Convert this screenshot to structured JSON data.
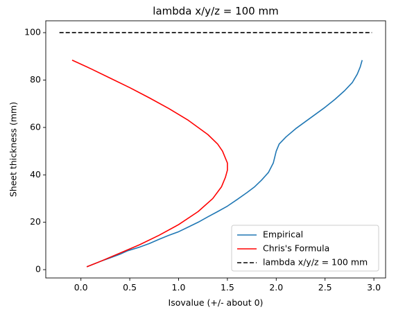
{
  "chart_data": {
    "type": "line",
    "title": "lambda x/y/z = 100 mm",
    "xlabel": "Isovalue (+/- about 0)",
    "ylabel": "Sheet thickness (mm)",
    "xlim": [
      -0.36,
      3.12
    ],
    "ylim": [
      -3.5,
      105
    ],
    "xticks": [
      0.0,
      0.5,
      1.0,
      1.5,
      2.0,
      2.5,
      3.0
    ],
    "xtick_labels": [
      "0.0",
      "0.5",
      "1.0",
      "1.5",
      "2.0",
      "2.5",
      "3.0"
    ],
    "yticks": [
      0,
      20,
      40,
      60,
      80,
      100
    ],
    "ytick_labels": [
      "0",
      "20",
      "40",
      "60",
      "80",
      "100"
    ],
    "grid": false,
    "legend_position": "lower-right",
    "series": [
      {
        "name": "Empirical",
        "color": "#1f77b4",
        "style": "solid",
        "points": [
          [
            0.06,
            1.2
          ],
          [
            0.2,
            3.5
          ],
          [
            0.3,
            5.0
          ],
          [
            0.4,
            6.5
          ],
          [
            0.48,
            8.0
          ],
          [
            0.6,
            9.5
          ],
          [
            0.7,
            11.0
          ],
          [
            0.8,
            12.8
          ],
          [
            0.9,
            14.5
          ],
          [
            1.0,
            16.0
          ],
          [
            1.1,
            18.0
          ],
          [
            1.2,
            20.0
          ],
          [
            1.3,
            22.3
          ],
          [
            1.4,
            24.5
          ],
          [
            1.5,
            26.8
          ],
          [
            1.6,
            29.6
          ],
          [
            1.7,
            32.5
          ],
          [
            1.78,
            35.0
          ],
          [
            1.85,
            37.8
          ],
          [
            1.92,
            41.0
          ],
          [
            1.97,
            45.0
          ],
          [
            2.0,
            50.0
          ],
          [
            2.03,
            53.0
          ],
          [
            2.1,
            56.0
          ],
          [
            2.2,
            59.5
          ],
          [
            2.3,
            62.5
          ],
          [
            2.4,
            65.5
          ],
          [
            2.5,
            68.5
          ],
          [
            2.6,
            71.8
          ],
          [
            2.7,
            75.5
          ],
          [
            2.78,
            79.0
          ],
          [
            2.83,
            82.5
          ],
          [
            2.86,
            85.5
          ],
          [
            2.88,
            88.4
          ]
        ]
      },
      {
        "name": "Chris's Formula",
        "color": "#ff0000",
        "style": "solid",
        "points": [
          [
            0.06,
            1.2
          ],
          [
            0.2,
            3.5
          ],
          [
            0.4,
            7.0
          ],
          [
            0.6,
            10.5
          ],
          [
            0.8,
            14.5
          ],
          [
            1.0,
            19.0
          ],
          [
            1.2,
            24.5
          ],
          [
            1.35,
            30.0
          ],
          [
            1.44,
            35.0
          ],
          [
            1.48,
            39.0
          ],
          [
            1.5,
            42.0
          ],
          [
            1.5,
            45.0
          ],
          [
            1.45,
            50.0
          ],
          [
            1.4,
            53.0
          ],
          [
            1.3,
            57.0
          ],
          [
            1.1,
            63.0
          ],
          [
            0.9,
            68.0
          ],
          [
            0.7,
            72.5
          ],
          [
            0.5,
            76.8
          ],
          [
            0.3,
            80.8
          ],
          [
            0.1,
            84.8
          ],
          [
            -0.09,
            88.4
          ]
        ]
      },
      {
        "name": "lambda x/y/z = 100 mm",
        "color": "#000000",
        "style": "dashed",
        "points": [
          [
            -0.22,
            100
          ],
          [
            2.98,
            100
          ]
        ]
      }
    ]
  }
}
